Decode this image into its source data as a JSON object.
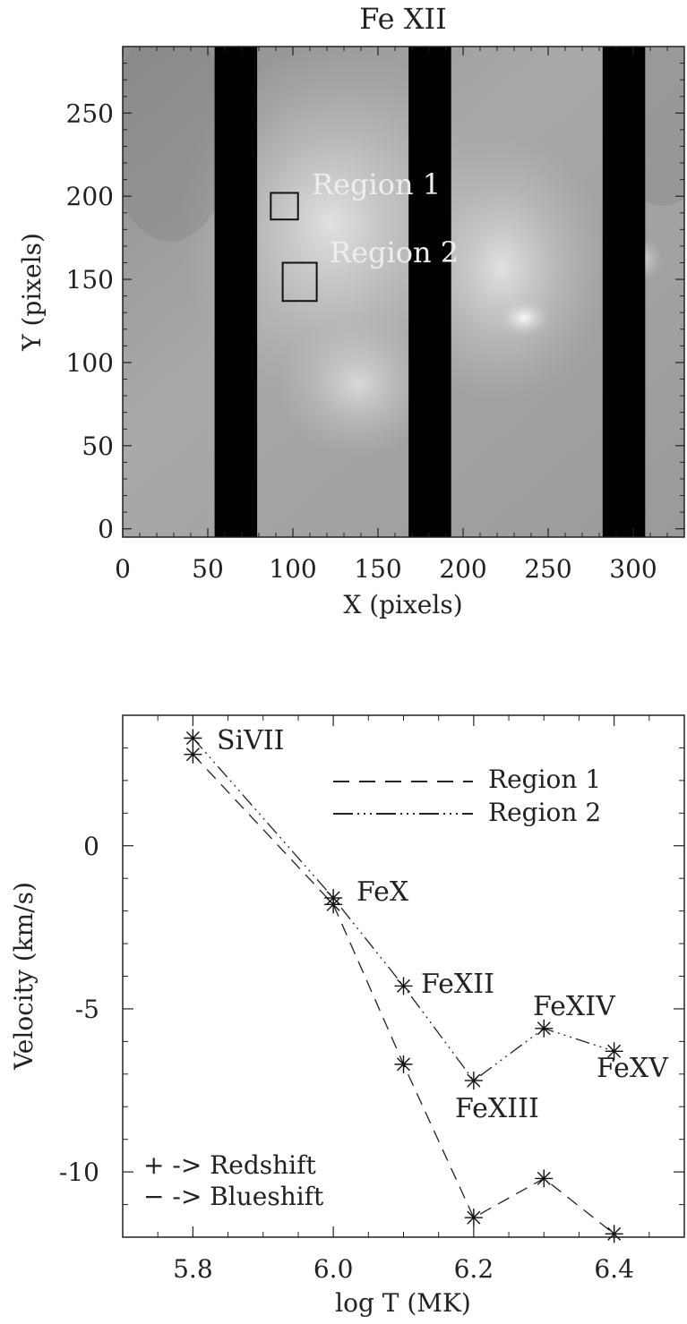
{
  "chart_data": [
    {
      "type": "heatmap",
      "title": "Fe XII",
      "xlabel": "X (pixels)",
      "ylabel": "Y (pixels)",
      "xlim": [
        0,
        330
      ],
      "ylim": [
        -5,
        290
      ],
      "xticks": [
        0,
        50,
        100,
        150,
        200,
        250,
        300
      ],
      "yticks": [
        0,
        50,
        100,
        150,
        200,
        250
      ],
      "data_gaps": [
        {
          "x0": 54,
          "x1": 79
        },
        {
          "x0": 168,
          "x1": 193
        },
        {
          "x0": 282,
          "x1": 307
        }
      ],
      "regions": [
        {
          "label": "Region 1",
          "x0": 87,
          "x1": 103,
          "y0": 186,
          "y1": 202
        },
        {
          "label": "Region 2",
          "x0": 94,
          "x1": 114,
          "y0": 137,
          "y1": 160
        }
      ],
      "annotations": [
        "Region 1",
        "Region 2"
      ]
    },
    {
      "type": "line",
      "xlabel": "log T (MK)",
      "ylabel": "Velocity (km/s)",
      "xlim": [
        5.7,
        6.5
      ],
      "ylim": [
        -12,
        4
      ],
      "xticks": [
        5.8,
        6.0,
        6.2,
        6.4
      ],
      "xtick_labels": [
        "5.8",
        "6.0",
        "6.2",
        "6.4"
      ],
      "yticks": [
        0,
        -5,
        -10
      ],
      "ytick_labels": [
        "0",
        "-5",
        "-10"
      ],
      "series": [
        {
          "name": "Region 1",
          "style": "dashed",
          "x": [
            5.8,
            6.0,
            6.1,
            6.2,
            6.3,
            6.4
          ],
          "y": [
            2.8,
            -1.8,
            -6.7,
            -11.4,
            -10.2,
            -11.9
          ]
        },
        {
          "name": "Region 2",
          "style": "dash-dot-dot",
          "x": [
            5.8,
            6.0,
            6.1,
            6.2,
            6.3,
            6.4
          ],
          "y": [
            3.3,
            -1.6,
            -4.3,
            -7.2,
            -5.6,
            -6.3
          ]
        }
      ],
      "line_labels": [
        "SiVII",
        "FeX",
        "FeXII",
        "FeXIII",
        "FeXIV",
        "FeXV"
      ],
      "legend_position": "top-right",
      "notes": [
        "+ -> Redshift",
        "− -> Blueshift"
      ]
    }
  ]
}
